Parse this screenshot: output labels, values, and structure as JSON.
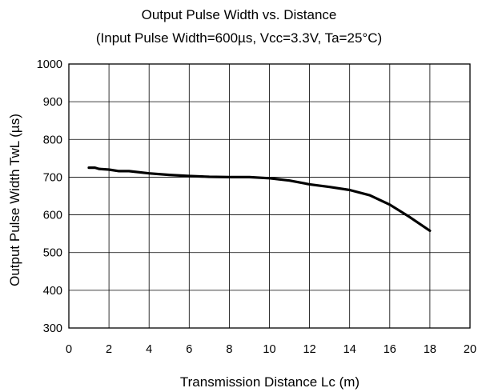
{
  "chart_data": {
    "type": "line",
    "title": "Output Pulse Width vs. Distance",
    "subtitle": "(Input Pulse Width=600µs, Vcc=3.3V, Ta=25°C)",
    "xlabel": "Transmission Distance Lc (m)",
    "ylabel": "Output Pulse Width TwL (µs)",
    "xlim": [
      0,
      20
    ],
    "ylim": [
      300,
      1000
    ],
    "xticks": [
      0,
      2,
      4,
      6,
      8,
      10,
      12,
      14,
      16,
      18,
      20
    ],
    "yticks": [
      300,
      400,
      500,
      600,
      700,
      800,
      900,
      1000
    ],
    "grid": true,
    "legend": "none",
    "line_color": "#000000",
    "series": [
      {
        "x": [
          1,
          1.3,
          1.5,
          2,
          2.5,
          3,
          4,
          5,
          6,
          7,
          8,
          9,
          10,
          11,
          12,
          13,
          14,
          15,
          16,
          17,
          18
        ],
        "y": [
          725,
          725,
          722,
          720,
          716,
          716,
          710,
          706,
          703,
          701,
          700,
          700,
          697,
          691,
          681,
          674,
          666,
          652,
          627,
          594,
          558
        ]
      }
    ]
  }
}
